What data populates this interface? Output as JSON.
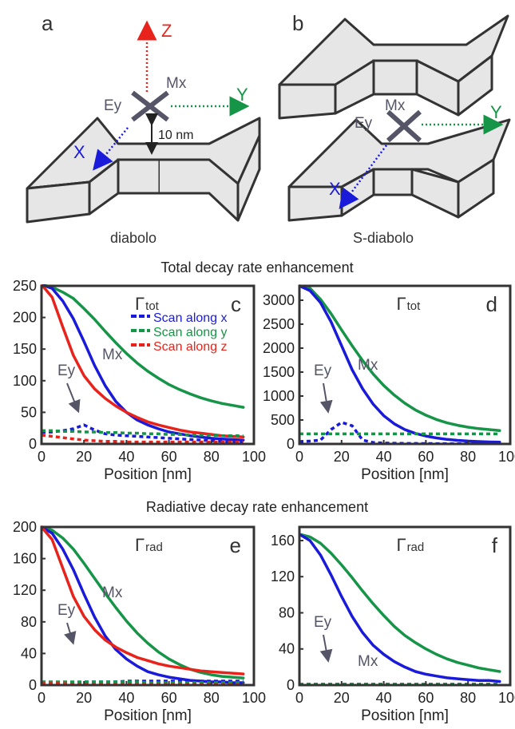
{
  "schematics": {
    "a": {
      "letter": "a",
      "caption": "diabolo",
      "axis_z": "Z",
      "axis_y": "Y",
      "axis_x": "X",
      "mx": "Mx",
      "ey": "Ey",
      "gap": "10 nm"
    },
    "b": {
      "letter": "b",
      "caption": "S-diabolo",
      "axis_y": "Y",
      "axis_x": "X",
      "mx": "Mx",
      "ey": "Ey"
    }
  },
  "section_titles": {
    "total": "Total decay rate enhancement",
    "radiative": "Radiative decay rate enhancement"
  },
  "legend": {
    "x": "Scan along x",
    "y": "Scan along y",
    "z": "Scan along z"
  },
  "colors": {
    "x": "#1a1adb",
    "y": "#169447",
    "z": "#e8231b",
    "annotation": "#555567",
    "axis_z_arrow": "#e8231b"
  },
  "chart_data": [
    {
      "type": "line",
      "panel_letter": "c",
      "gamma_symbol": "Γ",
      "gamma_sub": "tot",
      "xlabel": "Position [nm]",
      "ylabel": "",
      "xlim": [
        0,
        100
      ],
      "ylim": [
        0,
        250
      ],
      "xticks": [
        0,
        20,
        40,
        60,
        80,
        100
      ],
      "yticks": [
        0,
        50,
        100,
        150,
        200,
        250
      ],
      "mx_label": "Mx",
      "ey_label": "Ey",
      "show_legend": true,
      "x": [
        0,
        5,
        10,
        15,
        20,
        25,
        30,
        35,
        40,
        45,
        50,
        55,
        60,
        65,
        70,
        75,
        80,
        85,
        90,
        95
      ],
      "series": [
        {
          "key": "y",
          "style": "solid",
          "values": [
            252,
            248,
            240,
            230,
            214,
            197,
            178,
            160,
            143,
            128,
            115,
            104,
            94,
            86,
            79,
            73,
            68,
            64,
            61,
            58
          ]
        },
        {
          "key": "x",
          "style": "solid",
          "values": [
            252,
            246,
            226,
            198,
            162,
            124,
            92,
            67,
            50,
            38,
            30,
            24,
            19,
            16,
            13,
            11,
            9,
            8,
            7,
            6
          ]
        },
        {
          "key": "z",
          "style": "solid",
          "values": [
            252,
            232,
            185,
            140,
            108,
            87,
            72,
            60,
            50,
            42,
            35,
            30,
            26,
            22,
            19,
            17,
            15,
            13,
            12,
            11
          ]
        },
        {
          "key": "x",
          "style": "dashed",
          "values": [
            18,
            19,
            21,
            24,
            30,
            22,
            16,
            14,
            13,
            12,
            11,
            10,
            9,
            8,
            7,
            6,
            5,
            4,
            3,
            2
          ]
        },
        {
          "key": "y",
          "style": "dashed",
          "values": [
            21,
            21,
            20,
            20,
            19,
            19,
            18,
            18,
            17,
            17,
            16,
            16,
            15,
            15,
            14,
            14,
            14,
            13,
            13,
            13
          ]
        },
        {
          "key": "z",
          "style": "dashed",
          "values": [
            14,
            12,
            10,
            8,
            6,
            5,
            4,
            4,
            3,
            3,
            3,
            3,
            3,
            3,
            3,
            3,
            3,
            3,
            3,
            3
          ]
        }
      ]
    },
    {
      "type": "line",
      "panel_letter": "d",
      "gamma_symbol": "Γ",
      "gamma_sub": "tot",
      "xlabel": "Position [nm]",
      "ylabel": "",
      "xlim": [
        0,
        100
      ],
      "ylim": [
        0,
        3300
      ],
      "xticks": [
        0,
        20,
        40,
        60,
        80,
        100
      ],
      "yticks": [
        0,
        500,
        1000,
        1500,
        2000,
        2500,
        3000
      ],
      "mx_label": "Mx",
      "ey_label": "Ey",
      "show_legend": false,
      "x": [
        0,
        5,
        10,
        15,
        20,
        25,
        30,
        35,
        40,
        45,
        50,
        55,
        60,
        65,
        70,
        75,
        80,
        85,
        90,
        95
      ],
      "series": [
        {
          "key": "y",
          "style": "solid",
          "values": [
            3300,
            3250,
            3020,
            2720,
            2380,
            2050,
            1740,
            1460,
            1220,
            1020,
            850,
            710,
            600,
            510,
            440,
            390,
            350,
            320,
            300,
            280
          ]
        },
        {
          "key": "x",
          "style": "solid",
          "values": [
            3300,
            3200,
            2950,
            2550,
            2050,
            1550,
            1150,
            830,
            590,
            420,
            300,
            220,
            165,
            125,
            95,
            75,
            60,
            50,
            42,
            36
          ]
        },
        {
          "key": "x",
          "style": "dashed",
          "values": [
            50,
            60,
            80,
            300,
            450,
            380,
            80,
            30,
            20,
            15,
            12,
            10,
            8,
            6,
            5,
            4,
            3,
            3,
            2,
            2
          ]
        },
        {
          "key": "y",
          "style": "dashed",
          "values": [
            210,
            210,
            210,
            210,
            210,
            210,
            210,
            210,
            210,
            210,
            210,
            210,
            210,
            210,
            210,
            210,
            210,
            210,
            210,
            210
          ]
        }
      ]
    },
    {
      "type": "line",
      "panel_letter": "e",
      "gamma_symbol": "Γ",
      "gamma_sub": "rad",
      "xlabel": "Position [nm]",
      "ylabel": "",
      "xlim": [
        0,
        100
      ],
      "ylim": [
        0,
        200
      ],
      "xticks": [
        0,
        20,
        40,
        60,
        80,
        100
      ],
      "yticks": [
        0,
        40,
        80,
        120,
        160,
        200
      ],
      "mx_label": "Mx",
      "ey_label": "Ey",
      "show_legend": false,
      "x": [
        0,
        5,
        10,
        15,
        20,
        25,
        30,
        35,
        40,
        45,
        50,
        55,
        60,
        65,
        70,
        75,
        80,
        85,
        90,
        95
      ],
      "series": [
        {
          "key": "y",
          "style": "solid",
          "values": [
            200,
            196,
            186,
            172,
            154,
            135,
            116,
            98,
            81,
            66,
            53,
            42,
            33,
            26,
            20,
            16,
            13,
            11,
            10,
            9
          ]
        },
        {
          "key": "x",
          "style": "solid",
          "values": [
            200,
            192,
            172,
            146,
            115,
            86,
            62,
            45,
            33,
            24,
            17,
            13,
            10,
            8,
            6,
            5,
            4,
            4,
            3,
            3
          ]
        },
        {
          "key": "z",
          "style": "solid",
          "values": [
            200,
            184,
            148,
            112,
            87,
            70,
            57,
            48,
            41,
            35,
            31,
            27,
            24,
            22,
            20,
            18,
            17,
            16,
            15,
            14
          ]
        },
        {
          "key": "x",
          "style": "dashed",
          "values": [
            3,
            3,
            3,
            3,
            4,
            4,
            4,
            4,
            5,
            5,
            5,
            5,
            5,
            5,
            5,
            5,
            5,
            5,
            5,
            5
          ]
        },
        {
          "key": "y",
          "style": "dashed",
          "values": [
            4,
            4,
            4,
            4,
            4,
            4,
            4,
            4,
            4,
            4,
            3,
            3,
            3,
            3,
            3,
            3,
            3,
            3,
            3,
            3
          ]
        },
        {
          "key": "z",
          "style": "dashed",
          "values": [
            2,
            2,
            2,
            1,
            1,
            1,
            1,
            1,
            1,
            1,
            1,
            1,
            1,
            1,
            1,
            1,
            1,
            1,
            1,
            1
          ]
        }
      ]
    },
    {
      "type": "line",
      "panel_letter": "f",
      "gamma_symbol": "Γ",
      "gamma_sub": "rad",
      "xlabel": "Position [nm]",
      "ylabel": "",
      "xlim": [
        0,
        100
      ],
      "ylim": [
        0,
        175
      ],
      "xticks": [
        0,
        20,
        40,
        60,
        80,
        100
      ],
      "yticks": [
        0,
        40,
        80,
        120,
        160
      ],
      "mx_label": "Mx",
      "ey_label": "Ey",
      "show_legend": false,
      "x": [
        0,
        5,
        10,
        15,
        20,
        25,
        30,
        35,
        40,
        45,
        50,
        55,
        60,
        65,
        70,
        75,
        80,
        85,
        90,
        95
      ],
      "series": [
        {
          "key": "y",
          "style": "solid",
          "values": [
            167,
            164,
            157,
            146,
            133,
            119,
            104,
            90,
            77,
            65,
            55,
            47,
            40,
            34,
            29,
            25,
            22,
            19,
            17,
            15
          ]
        },
        {
          "key": "x",
          "style": "solid",
          "values": [
            167,
            160,
            144,
            122,
            98,
            76,
            58,
            44,
            34,
            26,
            20,
            15,
            12,
            10,
            8,
            7,
            6,
            5,
            5,
            4
          ]
        },
        {
          "key": "x",
          "style": "dashed",
          "values": [
            1,
            1,
            1,
            1,
            1,
            1,
            1,
            1,
            1,
            1,
            1,
            1,
            1,
            1,
            1,
            1,
            1,
            1,
            1,
            1
          ]
        },
        {
          "key": "y",
          "style": "dashed",
          "values": [
            1,
            1,
            1,
            1,
            1,
            1,
            1,
            1,
            1,
            1,
            1,
            1,
            1,
            1,
            1,
            1,
            1,
            1,
            1,
            1
          ]
        }
      ]
    }
  ]
}
